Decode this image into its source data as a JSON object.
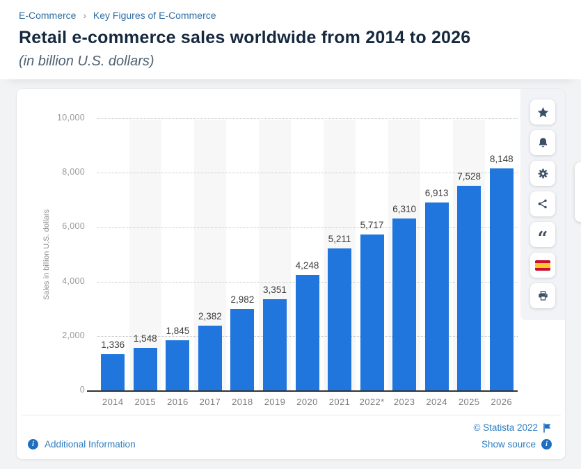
{
  "breadcrumb": {
    "items": [
      "E-Commerce",
      "Key Figures of E-Commerce"
    ],
    "separator": "›"
  },
  "header": {
    "title": "Retail e-commerce sales worldwide from 2014 to 2026",
    "subtitle": "(in billion U.S. dollars)"
  },
  "chart_data": {
    "type": "bar",
    "categories": [
      "2014",
      "2015",
      "2016",
      "2017",
      "2018",
      "2019",
      "2020",
      "2021",
      "2022*",
      "2023",
      "2024",
      "2025",
      "2026"
    ],
    "values": [
      1336,
      1548,
      1845,
      2382,
      2982,
      3351,
      4248,
      5211,
      5717,
      6310,
      6913,
      7528,
      8148
    ],
    "value_labels": [
      "1,336",
      "1,548",
      "1,845",
      "2,382",
      "2,982",
      "3,351",
      "4,248",
      "5,211",
      "5,717",
      "6,310",
      "6,913",
      "7,528",
      "8,148"
    ],
    "title": "Retail e-commerce sales worldwide from 2014 to 2026",
    "xlabel": "",
    "ylabel": "Sales in billion U.S. dollars",
    "ylim": [
      0,
      10000
    ],
    "ytick_interval": 2000,
    "ytick_labels": [
      "0",
      "2,000",
      "4,000",
      "6,000",
      "8,000",
      "10,000"
    ],
    "grid": "horizontal-dotted",
    "legend": "none",
    "bar_color": "#2076dd",
    "alternating_band_color": "#f7f7f8"
  },
  "toolbar": {
    "buttons": [
      {
        "name": "favorite-button",
        "icon": "star-icon"
      },
      {
        "name": "alert-button",
        "icon": "bell-icon"
      },
      {
        "name": "settings-button",
        "icon": "gear-icon"
      },
      {
        "name": "share-button",
        "icon": "share-icon"
      },
      {
        "name": "cite-button",
        "icon": "quote-icon"
      },
      {
        "name": "language-button",
        "icon": "spain-flag-icon"
      },
      {
        "name": "print-button",
        "icon": "printer-icon"
      }
    ]
  },
  "footer": {
    "additional_information": "Additional Information",
    "copyright": "© Statista 2022",
    "show_source": "Show source"
  },
  "colors": {
    "bar": "#2076dd",
    "link_blue": "#2d7cc1",
    "breadcrumb_blue": "#2d6da3",
    "title_navy": "#15283e",
    "info_icon_blue": "#1e6fc0",
    "icon_gray_navy": "#3d4f66",
    "spain_flag_red": "#c8102e",
    "spain_flag_yellow": "#ffc72c"
  }
}
